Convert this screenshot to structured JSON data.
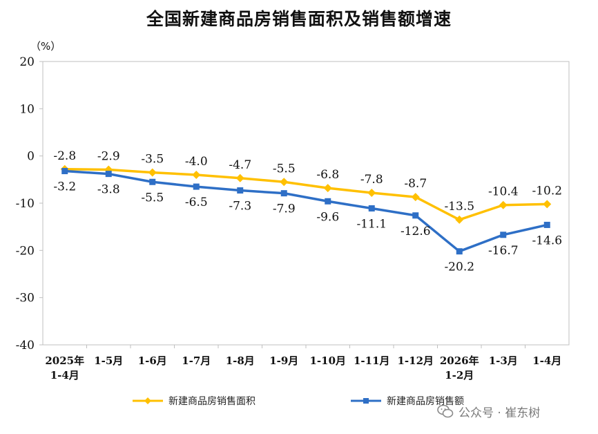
{
  "chart_data": {
    "type": "line",
    "title": "全国新建商品房销售面积及销售额增速",
    "ylabel": "（%）",
    "ylim": [
      -40,
      20
    ],
    "yticks": [
      20,
      10,
      0,
      -10,
      -20,
      -30,
      -40
    ],
    "categories": [
      [
        "2025年",
        "1-4月"
      ],
      [
        "1-5月"
      ],
      [
        "1-6月"
      ],
      [
        "1-7月"
      ],
      [
        "1-8月"
      ],
      [
        "1-9月"
      ],
      [
        "1-10月"
      ],
      [
        "1-11月"
      ],
      [
        "1-12月"
      ],
      [
        "2026年",
        "1-2月"
      ],
      [
        "1-3月"
      ],
      [
        "1-4月"
      ]
    ],
    "series": [
      {
        "name": "新建商品房销售面积",
        "color": "#FFC000",
        "marker": "diamond",
        "label_position": "above",
        "values": [
          -2.8,
          -2.9,
          -3.5,
          -4.0,
          -4.7,
          -5.5,
          -6.8,
          -7.8,
          -8.7,
          -13.5,
          -10.4,
          -10.2
        ]
      },
      {
        "name": "新建商品房销售额",
        "color": "#2E6FC6",
        "marker": "square",
        "label_position": "below",
        "values": [
          -3.2,
          -3.8,
          -5.5,
          -6.5,
          -7.3,
          -7.9,
          -9.6,
          -11.1,
          -12.6,
          -20.2,
          -16.7,
          -14.6
        ]
      }
    ],
    "grid": false,
    "legend_position": "bottom"
  },
  "watermark": {
    "text": "公众号 · 崔东树",
    "icon": "wechat-icon"
  }
}
